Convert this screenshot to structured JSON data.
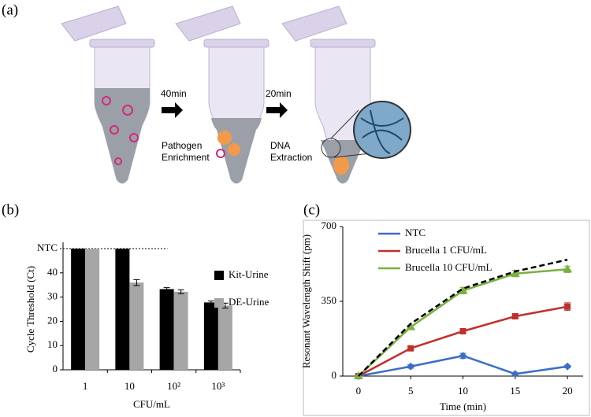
{
  "panels": {
    "a": "(a)",
    "b": "(b)",
    "c": "(c)"
  },
  "diagram": {
    "steps": [
      {
        "time": "40min",
        "label": [
          "Pathogen",
          "Enrichment"
        ]
      },
      {
        "time": "20min",
        "label": [
          "DNA",
          "Extraction"
        ]
      }
    ]
  },
  "chart_data": [
    {
      "type": "bar",
      "ylabel": "Cycle Threshold (Ct)",
      "xlabel": "CFU/mL",
      "categories": [
        "1",
        "10",
        "10²",
        "10³"
      ],
      "series": [
        {
          "name": "Kit-Urine",
          "color": "#000000",
          "values": [
            50,
            50,
            33.3,
            27.8
          ],
          "errors": [
            0,
            0,
            0.6,
            0.6
          ]
        },
        {
          "name": "DE-Urine",
          "color": "#a6a6a6",
          "values": [
            50,
            36,
            32.2,
            26.5
          ],
          "errors": [
            0,
            1.2,
            0.8,
            1.0
          ]
        }
      ],
      "ylim": [
        0,
        50
      ],
      "yticks": [
        0,
        10,
        20,
        30,
        40,
        {
          "value": 50,
          "label": "NTC"
        }
      ]
    },
    {
      "type": "line",
      "xlabel": "Time  (min)",
      "ylabel": "Resonant Wavelength Shift (pm)",
      "x": [
        0,
        5,
        10,
        15,
        20
      ],
      "series": [
        {
          "name": "NTC",
          "color": "#3a6fc4",
          "marker": "diamond",
          "values": [
            0,
            45,
            95,
            10,
            45
          ],
          "errors": [
            0,
            8,
            12,
            5,
            6
          ]
        },
        {
          "name": "Brucella 1 CFU/mL",
          "color": "#c0302a",
          "marker": "square",
          "values": [
            0,
            130,
            210,
            280,
            325
          ],
          "errors": [
            0,
            8,
            12,
            12,
            18
          ]
        },
        {
          "name": "Brucella 10 CFU/mL",
          "color": "#7ab040",
          "marker": "triangle",
          "values": [
            0,
            230,
            400,
            480,
            500
          ],
          "errors": [
            0,
            8,
            15,
            15,
            15
          ]
        }
      ],
      "fit": {
        "color": "#000000",
        "values": [
          0,
          245,
          410,
          490,
          545
        ]
      },
      "xlim": [
        -1.5,
        21.5
      ],
      "xticks": [
        0,
        5,
        10,
        15,
        20
      ],
      "ylim": [
        0,
        700
      ],
      "yticks": [
        0,
        350,
        700
      ]
    }
  ]
}
